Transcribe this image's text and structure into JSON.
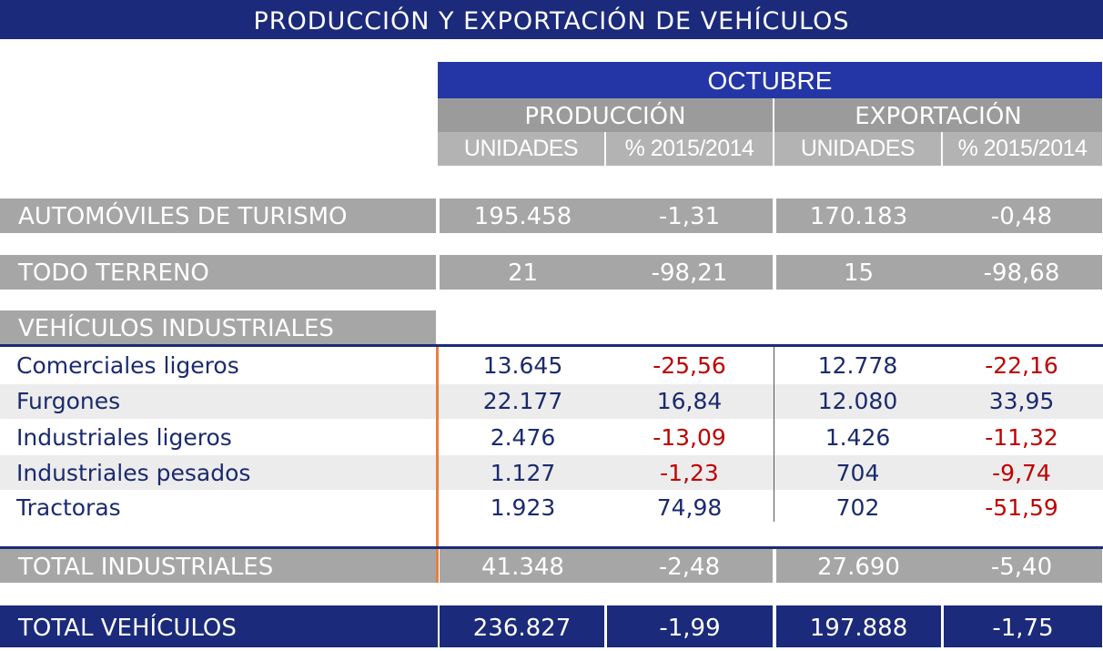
{
  "title": "PRODUCCIÓN Y EXPORTACIÓN DE VEHÍCULOS",
  "header": {
    "month": "OCTUBRE",
    "groups": [
      "PRODUCCIÓN",
      "EXPORTACIÓN"
    ],
    "subcols": [
      "UNIDADES",
      "% 2015/2014",
      "UNIDADES",
      "% 2015/2014"
    ]
  },
  "turismo": {
    "label": "AUTOMÓVILES DE TURISMO",
    "values": [
      "195.458",
      "-1,31",
      "170.183",
      "-0,48"
    ]
  },
  "todo_terreno": {
    "label": "TODO TERRENO",
    "values": [
      "21",
      "-98,21",
      "15",
      "-98,68"
    ]
  },
  "industriales": {
    "label": "VEHÍCULOS INDUSTRIALES",
    "rows": [
      {
        "label": "Comerciales ligeros",
        "values": [
          "13.645",
          "-25,56",
          "12.778",
          "-22,16"
        ]
      },
      {
        "label": "Furgones",
        "values": [
          "22.177",
          "16,84",
          "12.080",
          "33,95"
        ]
      },
      {
        "label": "Industriales ligeros",
        "values": [
          "2.476",
          "-13,09",
          "1.426",
          "-11,32"
        ]
      },
      {
        "label": "Industriales pesados",
        "values": [
          "1.127",
          "-1,23",
          "704",
          "-9,74"
        ]
      },
      {
        "label": "Tractoras",
        "values": [
          "1.923",
          "74,98",
          "702",
          "-51,59"
        ]
      }
    ]
  },
  "total_industriales": {
    "label": "TOTAL INDUSTRIALES",
    "values": [
      "41.348",
      "-2,48",
      "27.690",
      "-5,40"
    ]
  },
  "total_vehiculos": {
    "label": "TOTAL VEHÍCULOS",
    "values": [
      "236.827",
      "-1,99",
      "197.888",
      "-1,75"
    ]
  },
  "colors": {
    "navy": "#1b2a7a",
    "blue": "#2436a6",
    "gray": "#a6a6a6",
    "negative": "#c00000",
    "accent_line": "#e8803a"
  }
}
